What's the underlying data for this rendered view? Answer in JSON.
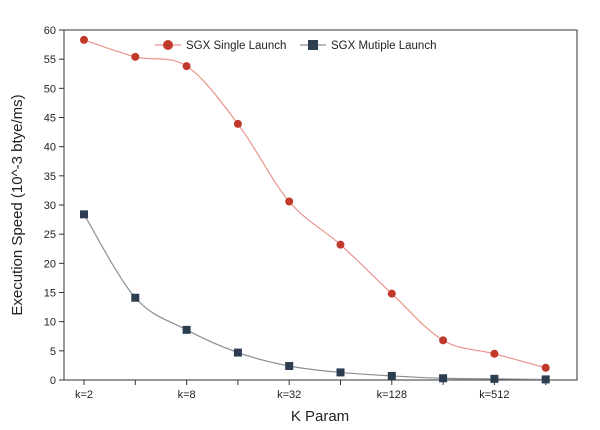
{
  "chart_data": {
    "type": "line",
    "title": "",
    "xlabel": "K Param",
    "ylabel": "Execution Speed  (10^-3 btye/ms)",
    "ylim": [
      0,
      60
    ],
    "y_ticks": [
      0,
      5,
      10,
      15,
      20,
      25,
      30,
      35,
      40,
      45,
      50,
      55,
      60
    ],
    "x_tick_labels": [
      "k=2",
      "k=8",
      "k=32",
      "k=128",
      "k=512"
    ],
    "grid": false,
    "legend_position": "top",
    "series": [
      {
        "name": "SGX Single Launch",
        "color": "#c0392b",
        "line_color": "#e8948c",
        "marker": "circle",
        "values": [
          58.3,
          55.4,
          53.8,
          43.9,
          30.6,
          23.2,
          14.8,
          6.8,
          4.5,
          2.1
        ]
      },
      {
        "name": "SGX Mutiple Launch",
        "color": "#2c3e50",
        "line_color": "#8a8f96",
        "marker": "square",
        "values": [
          28.4,
          14.1,
          8.6,
          4.7,
          2.4,
          1.3,
          0.7,
          0.3,
          0.2,
          0.1
        ]
      }
    ]
  }
}
